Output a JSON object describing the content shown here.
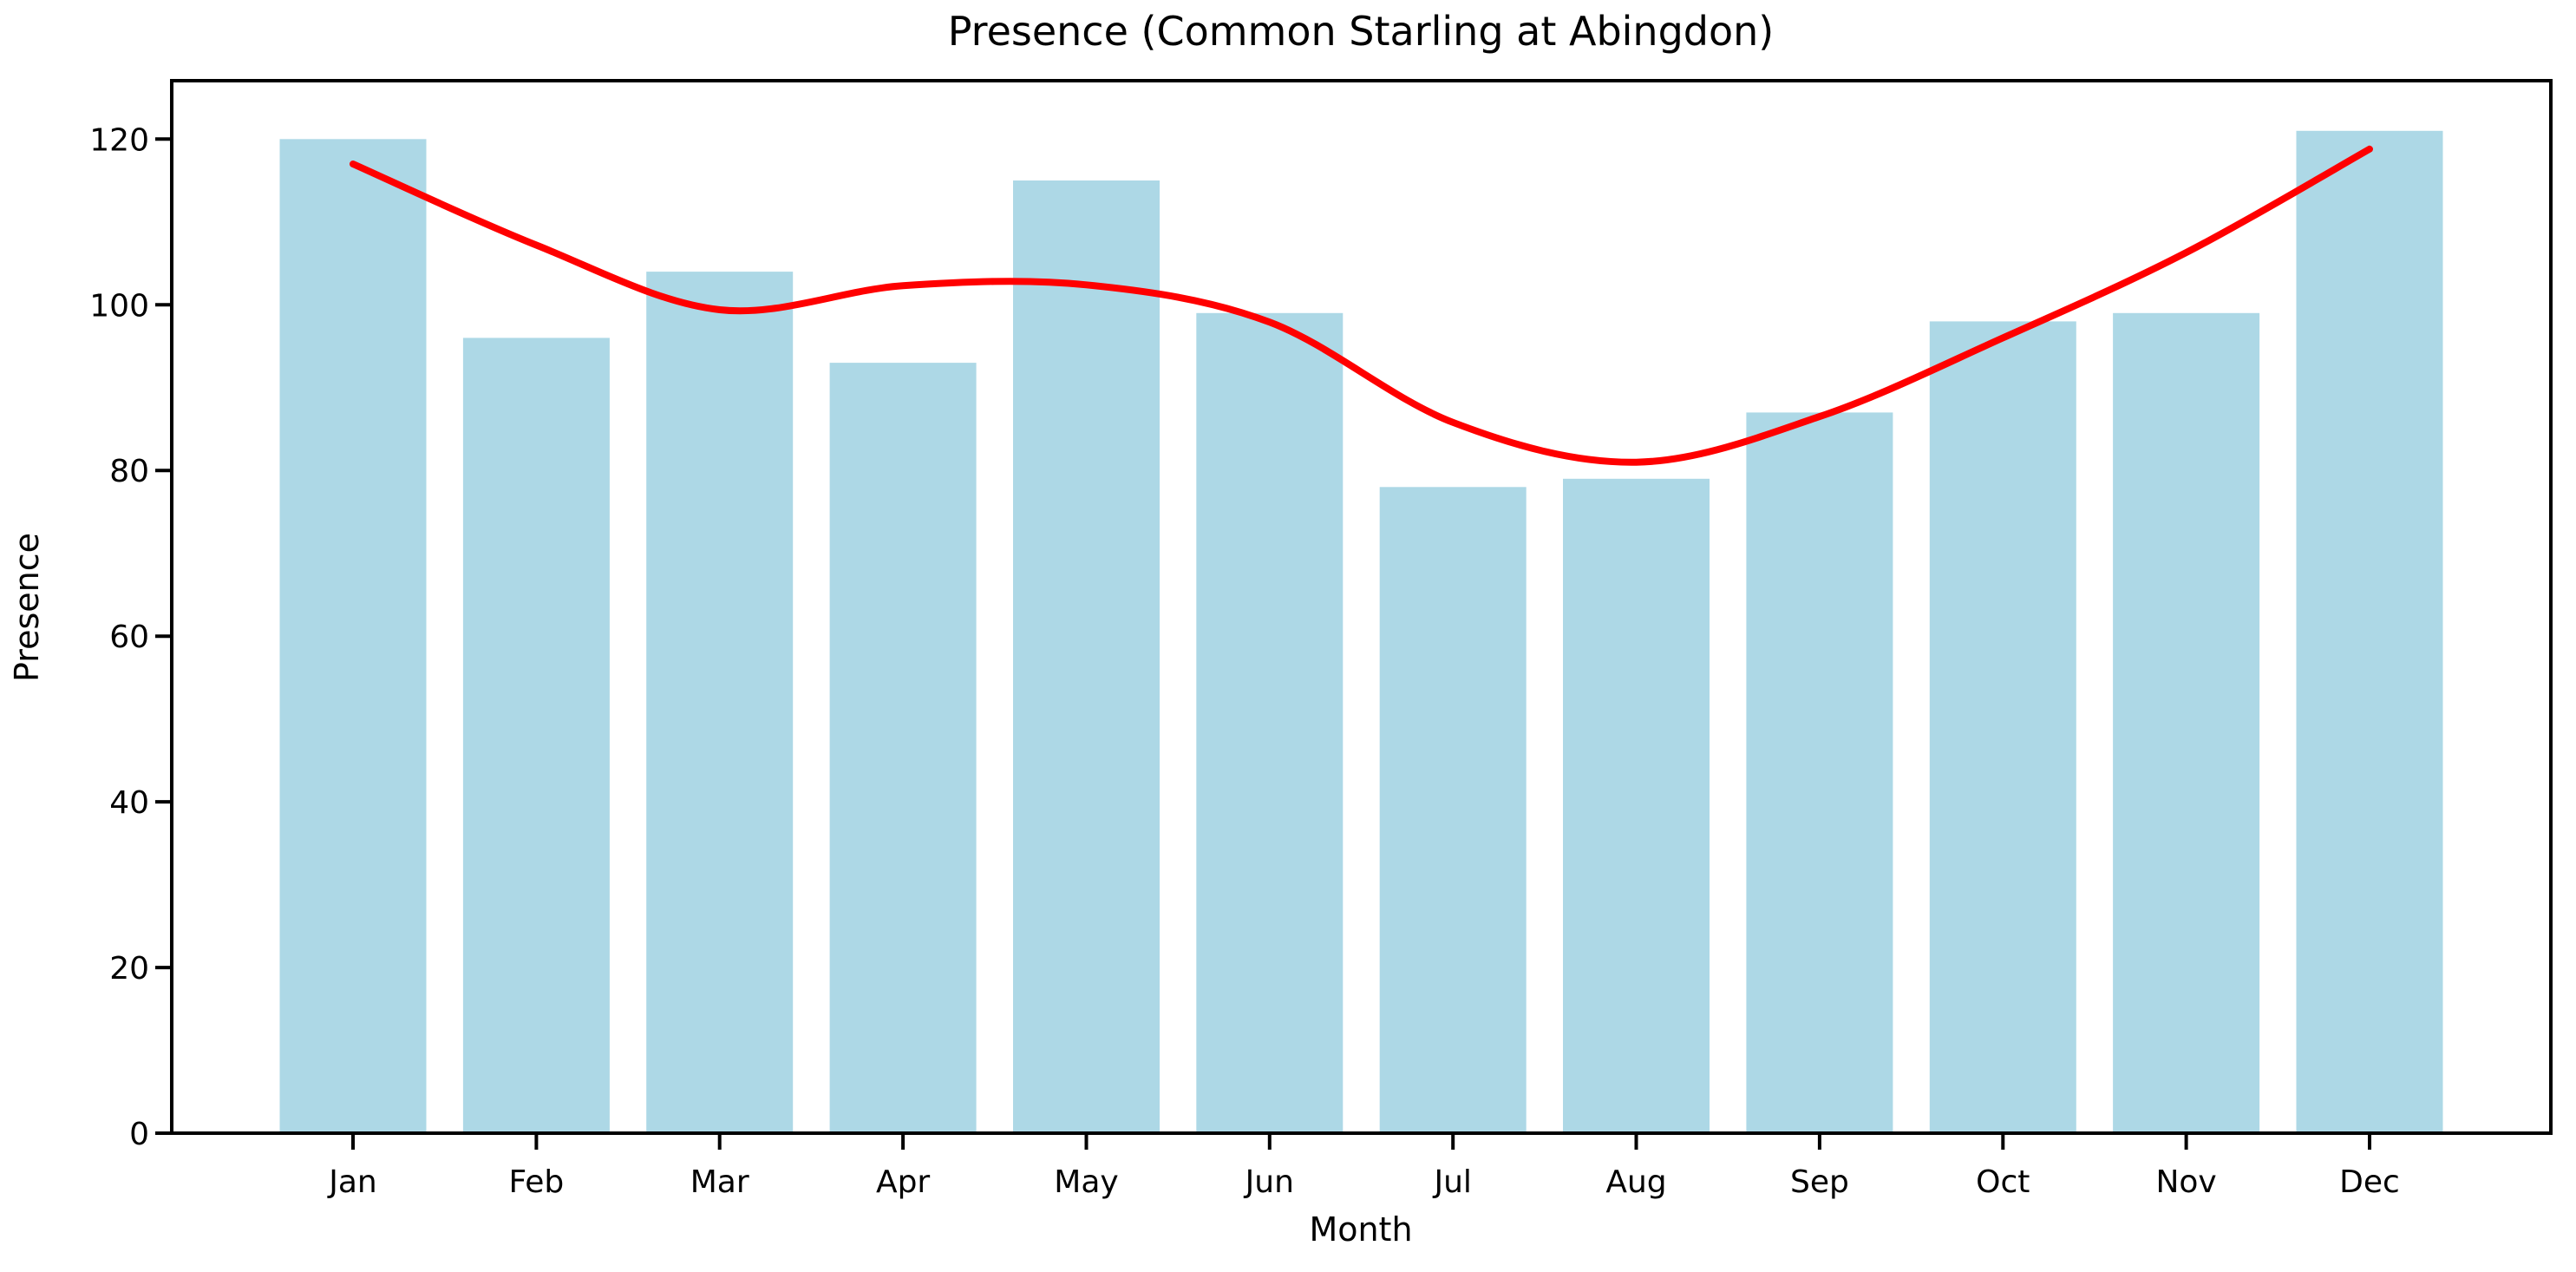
{
  "chart_data": {
    "type": "bar",
    "title": "Presence (Common Starling at Abingdon)",
    "xlabel": "Month",
    "ylabel": "Presence",
    "categories": [
      "Jan",
      "Feb",
      "Mar",
      "Apr",
      "May",
      "Jun",
      "Jul",
      "Aug",
      "Sep",
      "Oct",
      "Nov",
      "Dec"
    ],
    "series": [
      {
        "name": "presence-bars",
        "type": "bar",
        "color": "#ADD8E6",
        "values": [
          120,
          96,
          104,
          93,
          115,
          99,
          78,
          79,
          87,
          98,
          99,
          121
        ]
      },
      {
        "name": "smoothed-trend-line",
        "type": "line",
        "color": "#FF0000",
        "values": [
          117.0,
          107.2,
          99.4,
          102.3,
          102.4,
          97.9,
          85.8,
          81.0,
          86.5,
          96.0,
          106.3,
          118.8
        ]
      }
    ],
    "ylim": [
      0,
      127.05
    ],
    "yticks": [
      0,
      20,
      40,
      60,
      80,
      100,
      120
    ],
    "grid": false,
    "legend": false,
    "axis_color": "#000000",
    "background": "#FFFFFF"
  }
}
